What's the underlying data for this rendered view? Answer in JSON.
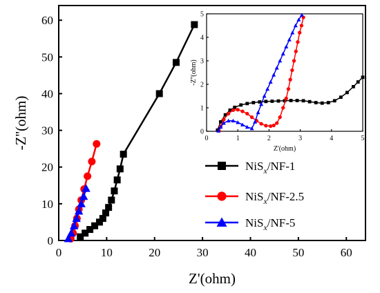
{
  "chart_data": [
    {
      "type": "scatter",
      "xlabel": "Z'(ohm)",
      "ylabel": "-Z''(ohm)",
      "xlim": [
        0,
        64
      ],
      "ylim": [
        0,
        64
      ],
      "xticks": [
        0,
        10,
        20,
        30,
        40,
        50,
        60
      ],
      "yticks": [
        0,
        10,
        20,
        30,
        40,
        50,
        60
      ],
      "series": [
        {
          "name": "NiSx/NF-1",
          "name_parts": {
            "base": "NiS",
            "sub": "x",
            "suffix": "/NF-1"
          },
          "color": "#000000",
          "marker": "square",
          "x": [
            4.5,
            5.5,
            6.5,
            7.5,
            8.5,
            9.2,
            9.8,
            10.4,
            11.0,
            11.6,
            12.2,
            12.8,
            13.5,
            21.0,
            24.5,
            28.3
          ],
          "y": [
            1.0,
            2.0,
            3.0,
            4.0,
            5.0,
            6.0,
            7.5,
            9.0,
            11.0,
            13.5,
            16.5,
            19.5,
            23.5,
            40.0,
            48.5,
            58.8
          ],
          "marker_every": 1
        },
        {
          "name": "NiSx/NF-2.5",
          "name_parts": {
            "base": "NiS",
            "sub": "x",
            "suffix": "/NF-2.5"
          },
          "color": "#ff0000",
          "marker": "circle",
          "x": [
            2.5,
            3.0,
            3.4,
            3.8,
            4.2,
            4.7,
            5.3,
            6.0,
            6.9,
            7.9
          ],
          "y": [
            0.5,
            2.0,
            4.0,
            6.0,
            8.5,
            11.0,
            14.0,
            17.5,
            21.5,
            26.3
          ],
          "marker_every": 1
        },
        {
          "name": "NiSx/NF-5",
          "name_parts": {
            "base": "NiS",
            "sub": "x",
            "suffix": "/NF-5"
          },
          "color": "#0000ff",
          "marker": "triangle",
          "x": [
            2.0,
            2.6,
            3.2,
            3.7,
            4.2,
            4.7,
            5.2,
            5.7
          ],
          "y": [
            0.5,
            2.0,
            4.0,
            6.0,
            8.0,
            10.0,
            12.0,
            14.2
          ],
          "marker_every": 1
        }
      ],
      "legend": {
        "placement": "bottom-right"
      }
    },
    {
      "type": "scatter",
      "role": "inset",
      "xlabel": "Z'(ohm)",
      "ylabel": "-Z''(ohm)",
      "xlim": [
        0,
        5
      ],
      "ylim": [
        0,
        5
      ],
      "xticks": [
        0,
        1,
        2,
        3,
        4,
        5
      ],
      "yticks": [
        0,
        1,
        2,
        3,
        4,
        5
      ],
      "placement": "top-right",
      "series": [
        {
          "name": "NiSx/NF-1",
          "color": "#000000",
          "marker": "square",
          "x": [
            0.35,
            0.45,
            0.6,
            0.75,
            0.9,
            1.1,
            1.3,
            1.5,
            1.7,
            1.9,
            2.1,
            2.3,
            2.5,
            2.7,
            2.9,
            3.1,
            3.3,
            3.5,
            3.7,
            3.9,
            4.1,
            4.3,
            4.5,
            4.7,
            4.85,
            5.0
          ],
          "y": [
            0.05,
            0.4,
            0.7,
            0.9,
            1.02,
            1.12,
            1.18,
            1.22,
            1.25,
            1.27,
            1.28,
            1.29,
            1.3,
            1.31,
            1.31,
            1.3,
            1.26,
            1.22,
            1.2,
            1.22,
            1.3,
            1.45,
            1.65,
            1.9,
            2.1,
            2.3
          ],
          "marker_every": 1
        },
        {
          "name": "NiSx/NF-2.5",
          "color": "#ff0000",
          "marker": "circle",
          "x": [
            0.4,
            0.45,
            0.55,
            0.7,
            0.85,
            1.0,
            1.15,
            1.3,
            1.45,
            1.6,
            1.75,
            1.9,
            2.05,
            2.15,
            2.25,
            2.35,
            2.45,
            2.55,
            2.62,
            2.68,
            2.74,
            2.8,
            2.86,
            2.92,
            2.98,
            3.04,
            3.1
          ],
          "y": [
            0.02,
            0.2,
            0.5,
            0.75,
            0.9,
            0.92,
            0.85,
            0.75,
            0.6,
            0.45,
            0.32,
            0.24,
            0.22,
            0.25,
            0.35,
            0.6,
            1.0,
            1.4,
            1.8,
            2.2,
            2.6,
            3.0,
            3.4,
            3.8,
            4.2,
            4.5,
            4.85
          ],
          "marker_every": 1
        },
        {
          "name": "NiSx/NF-5",
          "color": "#0000ff",
          "marker": "triangle",
          "x": [
            0.38,
            0.45,
            0.55,
            0.7,
            0.85,
            1.0,
            1.15,
            1.3,
            1.45,
            1.55,
            1.65,
            1.75,
            1.85,
            1.95,
            2.05,
            2.15,
            2.25,
            2.35,
            2.45,
            2.55,
            2.65,
            2.75,
            2.85,
            2.95,
            3.05
          ],
          "y": [
            0.02,
            0.18,
            0.35,
            0.45,
            0.45,
            0.38,
            0.28,
            0.18,
            0.12,
            0.4,
            0.8,
            1.15,
            1.5,
            1.8,
            2.1,
            2.4,
            2.7,
            3.0,
            3.3,
            3.6,
            3.9,
            4.2,
            4.5,
            4.75,
            4.95
          ],
          "marker_every": 1
        }
      ]
    }
  ]
}
